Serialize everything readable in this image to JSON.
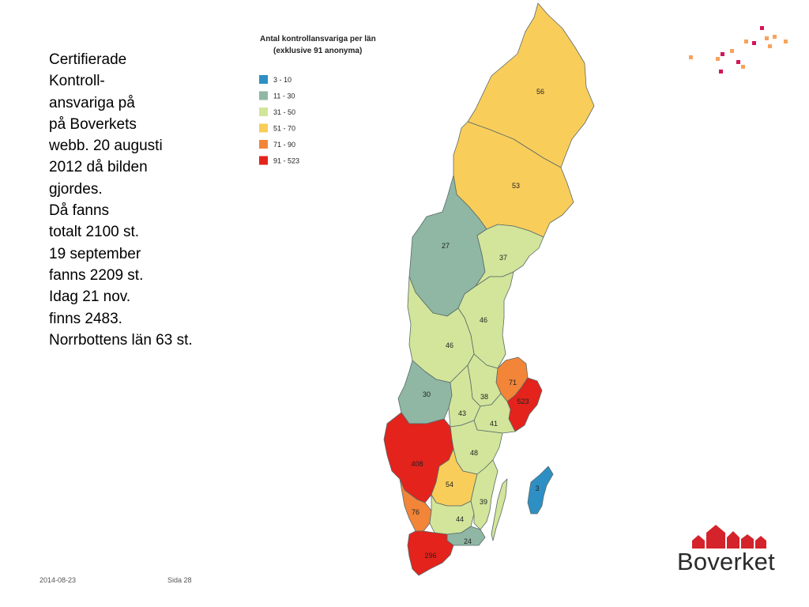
{
  "slide": {
    "note_lines": [
      "Certifierade",
      "Kontroll-",
      "ansvariga på",
      "på Boverkets",
      "webb. 20 augusti",
      "2012 då bilden",
      "gjordes.",
      "Då fanns",
      "totalt 2100 st.",
      "19 september",
      "fanns 2209 st.",
      "Idag 21 nov.",
      "finns 2483.",
      "Norrbottens län 63 st."
    ],
    "footer_date": "2014-08-23",
    "footer_page": "Sida 28",
    "logo_text": "Boverket"
  },
  "map": {
    "title_line1": "Antal kontrollansvariga per län",
    "title_line2": "(exklusive 91 anonyma)",
    "legend": [
      {
        "label": "3 - 10",
        "color": "#2e8fc4"
      },
      {
        "label": "11 - 30",
        "color": "#8fb7a4"
      },
      {
        "label": "31 - 50",
        "color": "#d2e59a"
      },
      {
        "label": "51 - 70",
        "color": "#f9cd5a"
      },
      {
        "label": "71 - 90",
        "color": "#f28538"
      },
      {
        "label": "91 - 523",
        "color": "#e3231c"
      }
    ],
    "regions": [
      {
        "name": "Norrbotten",
        "value": 56,
        "color": "#f9cd5a"
      },
      {
        "name": "Västerbotten",
        "value": 53,
        "color": "#f9cd5a"
      },
      {
        "name": "Jämtland",
        "value": 27,
        "color": "#8fb7a4"
      },
      {
        "name": "Västernorrland",
        "value": 37,
        "color": "#d2e59a"
      },
      {
        "name": "Gävleborg",
        "value": 46,
        "color": "#d2e59a"
      },
      {
        "name": "Dalarna",
        "value": 46,
        "color": "#d2e59a"
      },
      {
        "name": "Värmland",
        "value": 30,
        "color": "#8fb7a4"
      },
      {
        "name": "Uppsala",
        "value": 71,
        "color": "#f28538"
      },
      {
        "name": "Stockholm",
        "value": 523,
        "color": "#e3231c"
      },
      {
        "name": "Västmanland",
        "value": 38,
        "color": "#d2e59a"
      },
      {
        "name": "Örebro",
        "value": 43,
        "color": "#d2e59a"
      },
      {
        "name": "Södermanland",
        "value": 41,
        "color": "#d2e59a"
      },
      {
        "name": "Östergötland",
        "value": 48,
        "color": "#d2e59a"
      },
      {
        "name": "Västra Götaland",
        "value": 408,
        "color": "#e3231c"
      },
      {
        "name": "Jönköping",
        "value": 54,
        "color": "#f9cd5a"
      },
      {
        "name": "Halland",
        "value": 76,
        "color": "#f28538"
      },
      {
        "name": "Kronoberg",
        "value": 44,
        "color": "#d2e59a"
      },
      {
        "name": "Kalmar",
        "value": 39,
        "color": "#d2e59a"
      },
      {
        "name": "Gotland",
        "value": 3,
        "color": "#2e8fc4"
      },
      {
        "name": "Blekinge",
        "value": 24,
        "color": "#8fb7a4"
      },
      {
        "name": "Skåne",
        "value": 296,
        "color": "#e3231c"
      }
    ]
  },
  "decor": {
    "dot_colors": [
      "#d4145a",
      "#f7a35c"
    ],
    "logo_red": "#d4232a"
  }
}
